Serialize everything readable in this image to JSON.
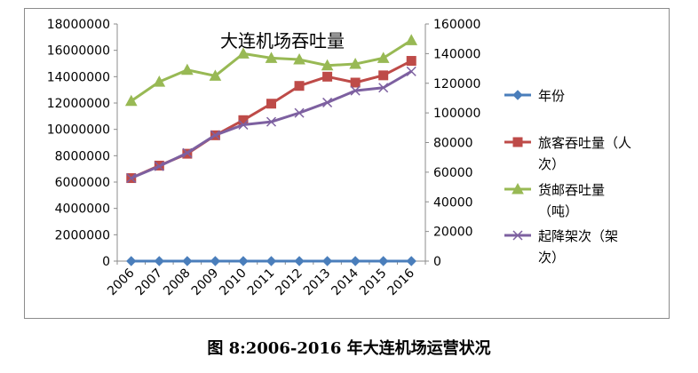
{
  "chart_data": {
    "type": "line",
    "title": "大连机场吞吐量",
    "categories": [
      "2006",
      "2007",
      "2008",
      "2009",
      "2010",
      "2011",
      "2012",
      "2013",
      "2014",
      "2015",
      "2016"
    ],
    "left_axis": {
      "range": [
        0,
        18000000
      ],
      "ticks": [
        "0",
        "2000000",
        "4000000",
        "6000000",
        "8000000",
        "10000000",
        "12000000",
        "14000000",
        "16000000",
        "18000000"
      ]
    },
    "right_axis": {
      "range": [
        0,
        160000
      ],
      "ticks": [
        "0",
        "20000",
        "40000",
        "60000",
        "80000",
        "100000",
        "120000",
        "140000",
        "160000"
      ]
    },
    "series": [
      {
        "name": "年份",
        "axis": "left",
        "color": "#4a7ebb",
        "marker": "diamond",
        "values": [
          2006,
          2007,
          2008,
          2009,
          2010,
          2011,
          2012,
          2013,
          2014,
          2015,
          2016
        ]
      },
      {
        "name": "旅客吞吐量（人次）",
        "axis": "left",
        "color": "#be4b48",
        "marker": "square",
        "values": [
          6300000,
          7250000,
          8150000,
          9550000,
          10700000,
          11950000,
          13300000,
          14000000,
          13550000,
          14100000,
          15200000
        ]
      },
      {
        "name": "货邮吞吐量（吨）",
        "axis": "right",
        "color": "#98b954",
        "marker": "triangle",
        "values": [
          108000,
          121000,
          129000,
          125000,
          140000,
          137000,
          136000,
          132000,
          133000,
          137000,
          149000
        ]
      },
      {
        "name": "起降架次（架次）",
        "axis": "right",
        "color": "#7d60a0",
        "marker": "x",
        "values": [
          56000,
          64000,
          73000,
          85000,
          92000,
          94000,
          100000,
          107000,
          115000,
          117000,
          128000
        ]
      }
    ],
    "legend": {
      "position": "right",
      "entries": [
        {
          "lines": [
            "年份"
          ]
        },
        {
          "lines": [
            "旅客吞吐量（人",
            "次）"
          ]
        },
        {
          "lines": [
            "货邮吞吐量",
            "（吨）"
          ]
        },
        {
          "lines": [
            "起降架次（架",
            "次）"
          ]
        }
      ]
    },
    "grid": false
  },
  "caption": "图 8:2006-2016 年大连机场运营状况"
}
